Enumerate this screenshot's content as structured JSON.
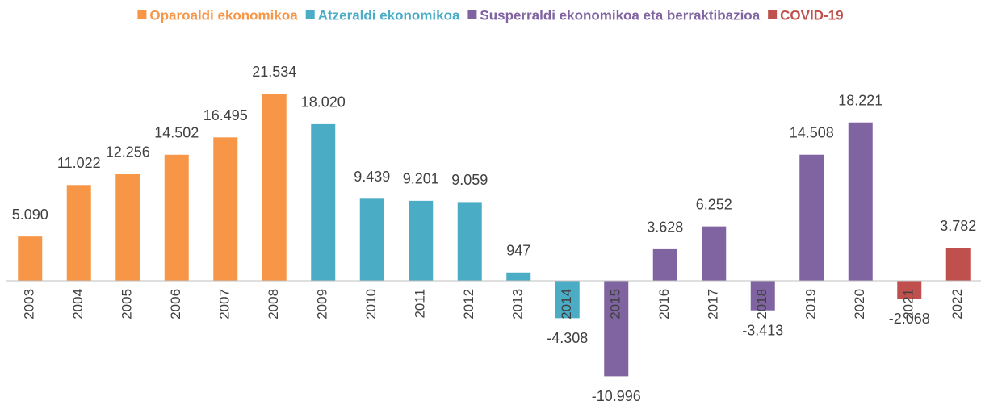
{
  "chart_data": {
    "type": "bar",
    "categories": [
      "2003",
      "2004",
      "2005",
      "2006",
      "2007",
      "2008",
      "2009",
      "2010",
      "2011",
      "2012",
      "2013",
      "2014",
      "2015",
      "2016",
      "2017",
      "2018",
      "2019",
      "2020",
      "2021",
      "2022"
    ],
    "series": [
      {
        "name": "Oparoaldi ekonomikoa",
        "color": "#f79646",
        "values": [
          5090,
          11022,
          12256,
          14502,
          16495,
          21534,
          null,
          null,
          null,
          null,
          null,
          null,
          null,
          null,
          null,
          null,
          null,
          null,
          null,
          null
        ],
        "value_labels": [
          "5.090",
          "11.022",
          "12.256",
          "14.502",
          "16.495",
          "21.534",
          null,
          null,
          null,
          null,
          null,
          null,
          null,
          null,
          null,
          null,
          null,
          null,
          null,
          null
        ]
      },
      {
        "name": "Atzeraldi ekonomikoa",
        "color": "#4bacc6",
        "values": [
          null,
          null,
          null,
          null,
          null,
          null,
          18020,
          9439,
          9201,
          9059,
          947,
          -4308,
          null,
          null,
          null,
          null,
          null,
          null,
          null,
          null
        ],
        "value_labels": [
          null,
          null,
          null,
          null,
          null,
          null,
          "18.020",
          "9.439",
          "9.201",
          "9.059",
          "947",
          "-4.308",
          null,
          null,
          null,
          null,
          null,
          null,
          null,
          null
        ]
      },
      {
        "name": "Susperraldi ekonomikoa eta berraktibazioa",
        "color": "#8064a2",
        "values": [
          null,
          null,
          null,
          null,
          null,
          null,
          null,
          null,
          null,
          null,
          null,
          null,
          -10996,
          3628,
          6252,
          -3413,
          14508,
          18221,
          null,
          null
        ],
        "value_labels": [
          null,
          null,
          null,
          null,
          null,
          null,
          null,
          null,
          null,
          null,
          null,
          null,
          "-10.996",
          "3.628",
          "6.252",
          "-3.413",
          "14.508",
          "18.221",
          null,
          null
        ]
      },
      {
        "name": "COVID-19",
        "color": "#c0504d",
        "values": [
          null,
          null,
          null,
          null,
          null,
          null,
          null,
          null,
          null,
          null,
          null,
          null,
          null,
          null,
          null,
          null,
          null,
          null,
          -2068,
          3782
        ],
        "value_labels": [
          null,
          null,
          null,
          null,
          null,
          null,
          null,
          null,
          null,
          null,
          null,
          null,
          null,
          null,
          null,
          null,
          null,
          null,
          "-2.068",
          "3.782"
        ]
      }
    ],
    "ylim": [
      -12000,
      24000
    ],
    "legend": "top"
  }
}
